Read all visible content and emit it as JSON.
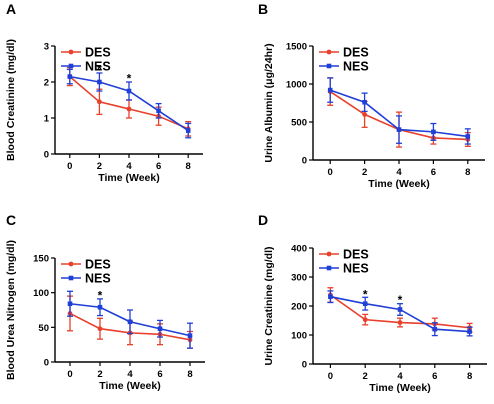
{
  "chart_data": [
    {
      "panel": "A",
      "type": "line",
      "xlabel": "Time (Week)",
      "ylabel": "Blood Creatinine (mg/dl)",
      "x": [
        0,
        2,
        4,
        6,
        8
      ],
      "xlim": [
        -1,
        9
      ],
      "ylim": [
        0,
        3
      ],
      "yticks": [
        0,
        1,
        2,
        3
      ],
      "legend": "top-left",
      "series": [
        {
          "name": "DES",
          "color": "#e8402a",
          "values": [
            2.15,
            1.45,
            1.25,
            1.05,
            0.7
          ],
          "errors": [
            0.25,
            0.35,
            0.25,
            0.25,
            0.2
          ]
        },
        {
          "name": "NES",
          "color": "#1f3fd6",
          "values": [
            2.15,
            2.0,
            1.75,
            1.2,
            0.65
          ],
          "errors": [
            0.2,
            0.25,
            0.25,
            0.2,
            0.2
          ]
        }
      ],
      "annotations": [
        {
          "x": 2,
          "y": 2.35,
          "text": "*"
        },
        {
          "x": 4,
          "y": 2.1,
          "text": "*"
        }
      ]
    },
    {
      "panel": "B",
      "type": "line",
      "xlabel": "Time (Week)",
      "ylabel": "Urine Albumin (μg/24hr)",
      "x": [
        0,
        2,
        4,
        6,
        8
      ],
      "xlim": [
        -1,
        9
      ],
      "ylim": [
        0,
        1500
      ],
      "yticks": [
        0,
        500,
        1000,
        1500
      ],
      "legend": "top-left",
      "series": [
        {
          "name": "DES",
          "color": "#e8402a",
          "values": [
            900,
            600,
            400,
            290,
            270
          ],
          "errors": [
            180,
            170,
            230,
            80,
            90
          ]
        },
        {
          "name": "NES",
          "color": "#1f3fd6",
          "values": [
            920,
            760,
            400,
            370,
            310
          ],
          "errors": [
            160,
            120,
            180,
            110,
            100
          ]
        }
      ],
      "annotations": []
    },
    {
      "panel": "C",
      "type": "line",
      "xlabel": "Time (Week)",
      "ylabel": "Blood Urea Nitrogen (mg/dl)",
      "x": [
        0,
        2,
        4,
        6,
        8
      ],
      "xlim": [
        -1,
        9
      ],
      "ylim": [
        0,
        150
      ],
      "yticks": [
        0,
        50,
        100,
        150
      ],
      "legend": "top-left",
      "series": [
        {
          "name": "DES",
          "color": "#e8402a",
          "values": [
            70,
            48,
            42,
            40,
            32
          ],
          "errors": [
            25,
            15,
            17,
            15,
            12
          ]
        },
        {
          "name": "NES",
          "color": "#1f3fd6",
          "values": [
            84,
            79,
            58,
            48,
            38
          ],
          "errors": [
            18,
            12,
            17,
            12,
            18
          ]
        }
      ],
      "annotations": [
        {
          "x": 2,
          "y": 96,
          "text": "*"
        }
      ]
    },
    {
      "panel": "D",
      "type": "line",
      "xlabel": "Time (Week)",
      "ylabel": "Urine Creatinine (mg/dl)",
      "x": [
        0,
        2,
        4,
        6,
        8
      ],
      "xlim": [
        -1,
        9
      ],
      "ylim": [
        0,
        400
      ],
      "yticks": [
        0,
        100,
        200,
        300,
        400
      ],
      "legend": "top-left",
      "series": [
        {
          "name": "DES",
          "color": "#e8402a",
          "values": [
            238,
            153,
            143,
            138,
            125
          ],
          "errors": [
            25,
            18,
            15,
            20,
            15
          ]
        },
        {
          "name": "NES",
          "color": "#1f3fd6",
          "values": [
            232,
            208,
            188,
            120,
            112
          ],
          "errors": [
            20,
            22,
            20,
            22,
            15
          ]
        }
      ],
      "annotations": [
        {
          "x": 2,
          "y": 240,
          "text": "*"
        },
        {
          "x": 4,
          "y": 220,
          "text": "*"
        }
      ]
    }
  ]
}
